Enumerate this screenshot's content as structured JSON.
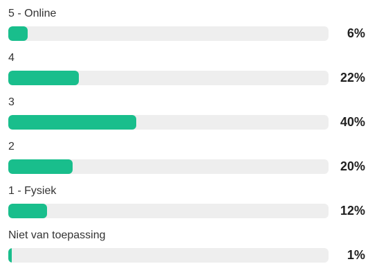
{
  "chart_data": {
    "type": "bar",
    "orientation": "horizontal",
    "categories": [
      "5 - Online",
      "4",
      "3",
      "2",
      "1 - Fysiek",
      "Niet van toepassing"
    ],
    "values": [
      6,
      22,
      40,
      20,
      12,
      1
    ],
    "value_labels": [
      "6%",
      "22%",
      "40%",
      "20%",
      "12%",
      "1%"
    ],
    "xlim": [
      0,
      100
    ],
    "grid": false,
    "bar_color": "#19be8c",
    "track_color": "#eeeeee"
  }
}
